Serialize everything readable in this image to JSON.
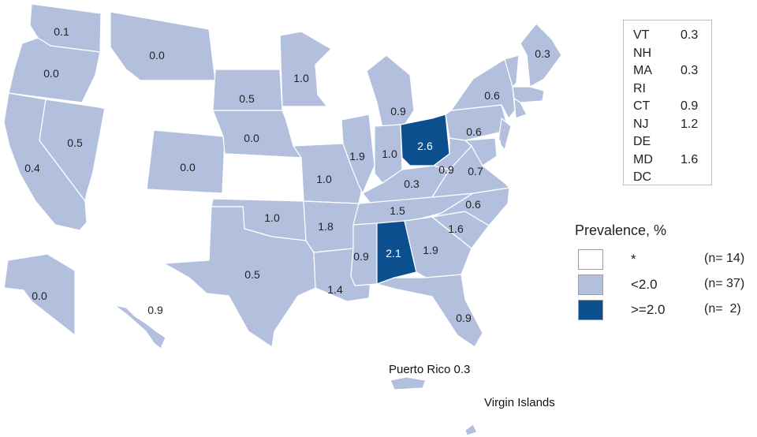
{
  "colors": {
    "no_data": "#ffffff",
    "low": "#b3c0dd",
    "high": "#0b4f8f",
    "border": "#ffffff"
  },
  "states": [
    {
      "id": "WA",
      "value": "0.1",
      "category": "low"
    },
    {
      "id": "OR",
      "value": "0.0",
      "category": "low"
    },
    {
      "id": "CA",
      "value": "0.4",
      "category": "low"
    },
    {
      "id": "NV",
      "value": "0.5",
      "category": "low"
    },
    {
      "id": "ID",
      "value": "",
      "category": "no_data"
    },
    {
      "id": "MT",
      "value": "0.0",
      "category": "low"
    },
    {
      "id": "WY",
      "value": "",
      "category": "no_data"
    },
    {
      "id": "UT",
      "value": "",
      "category": "no_data"
    },
    {
      "id": "AZ",
      "value": "",
      "category": "no_data"
    },
    {
      "id": "CO",
      "value": "0.0",
      "category": "low"
    },
    {
      "id": "NM",
      "value": "",
      "category": "no_data"
    },
    {
      "id": "ND",
      "value": "",
      "category": "no_data"
    },
    {
      "id": "SD",
      "value": "0.5",
      "category": "low"
    },
    {
      "id": "NE",
      "value": "0.0",
      "category": "low"
    },
    {
      "id": "KS",
      "value": "",
      "category": "no_data"
    },
    {
      "id": "OK",
      "value": "1.0",
      "category": "low"
    },
    {
      "id": "TX",
      "value": "0.5",
      "category": "low"
    },
    {
      "id": "MN",
      "value": "1.0",
      "category": "low"
    },
    {
      "id": "IA",
      "value": "",
      "category": "no_data"
    },
    {
      "id": "MO",
      "value": "1.0",
      "category": "low"
    },
    {
      "id": "AR",
      "value": "1.8",
      "category": "low"
    },
    {
      "id": "LA",
      "value": "1.4",
      "category": "low"
    },
    {
      "id": "WI",
      "value": "",
      "category": "no_data"
    },
    {
      "id": "IL",
      "value": "1.9",
      "category": "low"
    },
    {
      "id": "MI",
      "value": "0.9",
      "category": "low"
    },
    {
      "id": "IN",
      "value": "1.0",
      "category": "low"
    },
    {
      "id": "OH",
      "value": "2.6",
      "category": "high"
    },
    {
      "id": "KY",
      "value": "0.3",
      "category": "low"
    },
    {
      "id": "TN",
      "value": "1.5",
      "category": "low"
    },
    {
      "id": "MS",
      "value": "0.9",
      "category": "low"
    },
    {
      "id": "AL",
      "value": "2.1",
      "category": "high"
    },
    {
      "id": "GA",
      "value": "1.9",
      "category": "low"
    },
    {
      "id": "FL",
      "value": "0.9",
      "category": "low"
    },
    {
      "id": "SC",
      "value": "1.6",
      "category": "low"
    },
    {
      "id": "NC",
      "value": "0.6",
      "category": "low"
    },
    {
      "id": "VA",
      "value": "0.7",
      "category": "low"
    },
    {
      "id": "WV",
      "value": "0.9",
      "category": "low"
    },
    {
      "id": "PA",
      "value": "0.6",
      "category": "low"
    },
    {
      "id": "NY",
      "value": "0.6",
      "category": "low"
    },
    {
      "id": "ME",
      "value": "0.3",
      "category": "low"
    },
    {
      "id": "AK",
      "value": "0.0",
      "category": "low"
    },
    {
      "id": "HI",
      "value": "0.9",
      "category": "low"
    }
  ],
  "territories": {
    "puerto_rico_label": "Puerto Rico 0.3",
    "virgin_islands_label": "Virgin Islands"
  },
  "northeast_box": [
    {
      "abbr": "VT",
      "value": "0.3"
    },
    {
      "abbr": "NH",
      "value": ""
    },
    {
      "abbr": "MA",
      "value": "0.3"
    },
    {
      "abbr": "RI",
      "value": ""
    },
    {
      "abbr": "CT",
      "value": "0.9"
    },
    {
      "abbr": "NJ",
      "value": "1.2"
    },
    {
      "abbr": "DE",
      "value": ""
    },
    {
      "abbr": "MD",
      "value": "1.6"
    },
    {
      "abbr": "DC",
      "value": ""
    }
  ],
  "legend": {
    "title": "Prevalence, %",
    "items": [
      {
        "label": "*",
        "count": "(n= 14)",
        "category": "no_data"
      },
      {
        "label": "<2.0",
        "count": "(n= 37)",
        "category": "low"
      },
      {
        "label": ">=2.0",
        "count": "(n=  2)",
        "category": "high"
      }
    ]
  }
}
